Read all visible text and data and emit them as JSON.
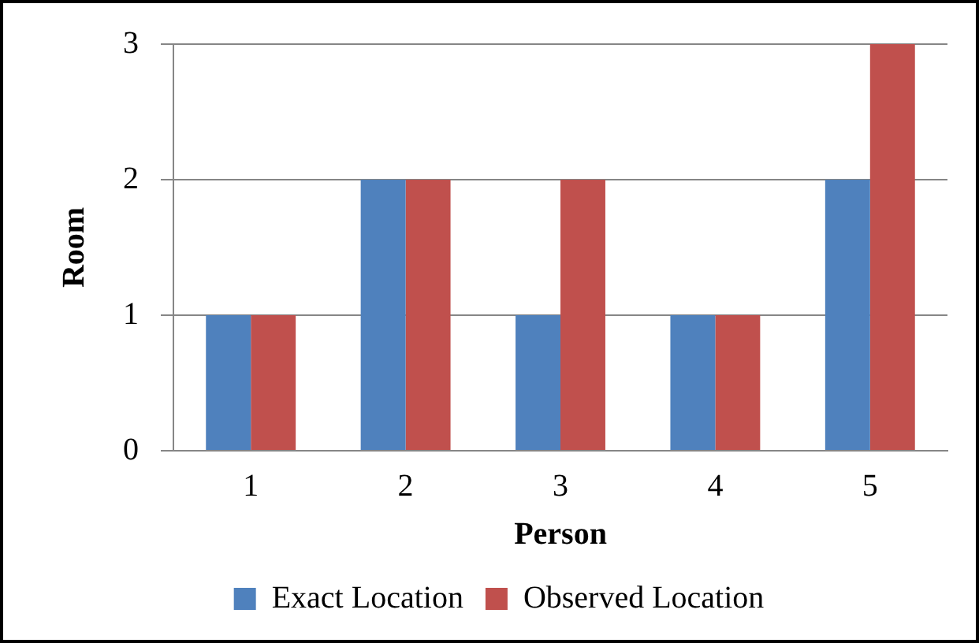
{
  "chart_data": {
    "type": "bar",
    "xlabel": "Person",
    "ylabel": "Room",
    "categories": [
      "1",
      "2",
      "3",
      "4",
      "5"
    ],
    "series": [
      {
        "name": "Exact Location",
        "color": "#4f81bd",
        "values": [
          1,
          2,
          1,
          1,
          2
        ]
      },
      {
        "name": "Observed Location",
        "color": "#c0504d",
        "values": [
          1,
          2,
          2,
          1,
          3
        ]
      }
    ],
    "ylim": [
      0,
      3
    ],
    "yticks": [
      0,
      1,
      2,
      3
    ],
    "grid": "y",
    "legend": "bottom"
  }
}
